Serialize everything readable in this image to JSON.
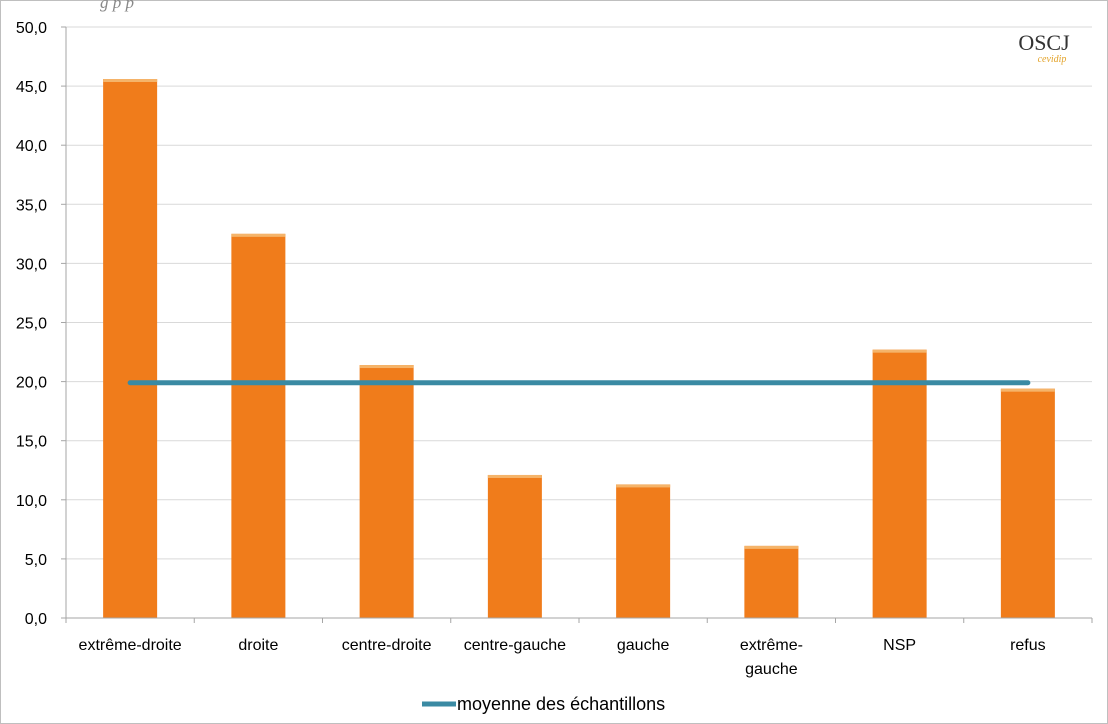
{
  "logo": {
    "text": "OSCJ",
    "subtext": "cevidip"
  },
  "chart_data": {
    "type": "bar",
    "categories": [
      "extrême-droite",
      "droite",
      "centre-droite",
      "centre-gauche",
      "gauche",
      "extrême-gauche",
      "NSP",
      "refus"
    ],
    "category_lines": [
      [
        "extrême-droite"
      ],
      [
        "droite"
      ],
      [
        "centre-droite"
      ],
      [
        "centre-gauche"
      ],
      [
        "gauche"
      ],
      [
        "extrême-",
        "gauche"
      ],
      [
        "NSP"
      ],
      [
        "refus"
      ]
    ],
    "values": [
      45.6,
      32.5,
      21.4,
      12.1,
      11.3,
      6.1,
      22.7,
      19.4
    ],
    "reference_line": {
      "name": "moyenne des échantillons",
      "value": 19.9
    },
    "ylim": [
      0,
      50
    ],
    "yticks": [
      "0,0",
      "5,0",
      "10,0",
      "15,0",
      "20,0",
      "25,0",
      "30,0",
      "35,0",
      "40,0",
      "45,0",
      "50,0"
    ],
    "grid": true,
    "legend_position": "bottom",
    "colors": {
      "bar": "#f07c1b",
      "bar_top": "#f5b46a",
      "line": "#3a8aa3",
      "grid": "#d9d9d9",
      "axis": "#a6a6a6"
    }
  }
}
